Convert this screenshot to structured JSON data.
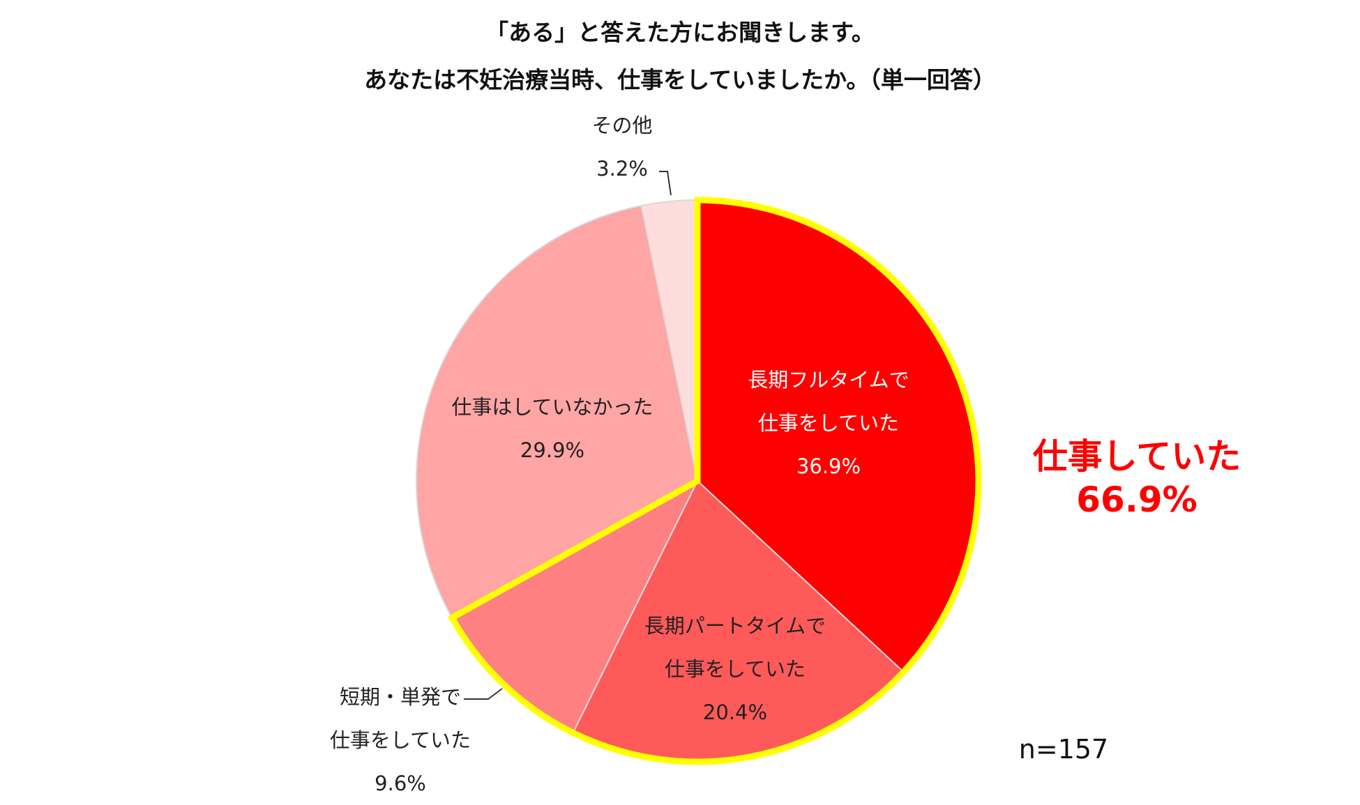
{
  "title_line1": "「ある」と答えた方にお聞きします。",
  "title_line2": "あなたは不妊治療当時、仕事をしていましたか。（単一回答）",
  "chart_data": {
    "type": "pie",
    "start_angle_deg": 0,
    "direction": "clockwise",
    "slices": [
      {
        "label_lines": [
          "長期フルタイムで",
          "仕事をしていた"
        ],
        "value": 36.9,
        "value_label": "36.9%",
        "color": "#ff0000",
        "label_position": "inside",
        "text_color": "#ffffff"
      },
      {
        "label_lines": [
          "長期パートタイムで",
          "仕事をしていた"
        ],
        "value": 20.4,
        "value_label": "20.4%",
        "color": "#ff5a5a",
        "label_position": "inside",
        "text_color": "#222222"
      },
      {
        "label_lines": [
          "短期・単発で",
          "仕事をしていた"
        ],
        "value": 9.6,
        "value_label": "9.6%",
        "color": "#ff8080",
        "label_position": "outside-left-bottom",
        "text_color": "#222222"
      },
      {
        "label_lines": [
          "仕事はしていなかった"
        ],
        "value": 29.9,
        "value_label": "29.9%",
        "color": "#ffa5a5",
        "label_position": "inside",
        "text_color": "#222222"
      },
      {
        "label_lines": [
          "その他"
        ],
        "value": 3.2,
        "value_label": "3.2%",
        "color": "#ffdcdc",
        "label_position": "outside-top",
        "text_color": "#222222"
      }
    ],
    "highlight": {
      "slices_included": [
        0,
        1,
        2
      ],
      "outline_color": "#ffff00",
      "label_lines": [
        "仕事していた",
        "66.9%"
      ],
      "label_color": "#ff0000"
    },
    "sample_size_label": "n=157"
  }
}
